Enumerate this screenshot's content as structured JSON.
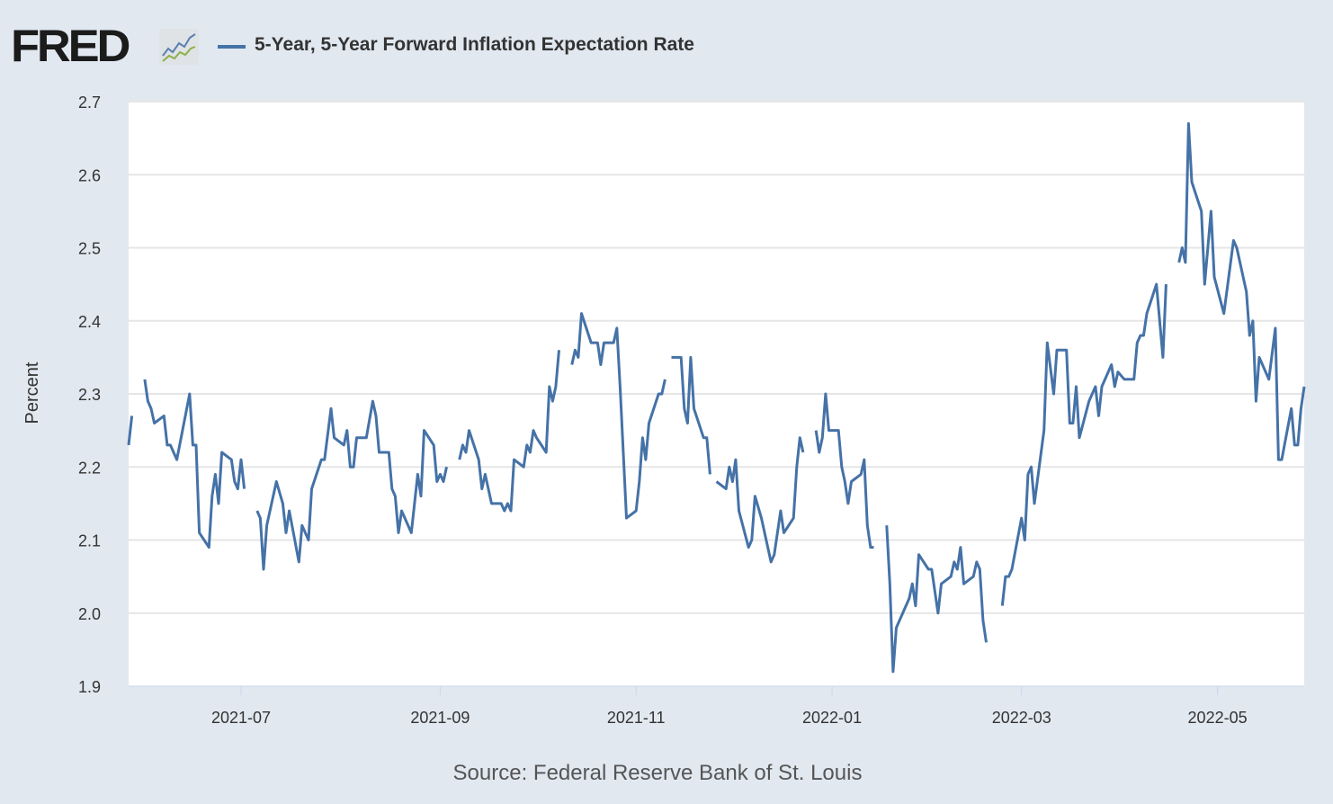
{
  "header": {
    "logo_text": "FRED",
    "logo_icon": "line-chart-icon",
    "legend_label": "5-Year, 5-Year Forward Inflation Expectation Rate"
  },
  "footer": {
    "source": "Source: Federal Reserve Bank of St. Louis"
  },
  "chart_data": {
    "type": "line",
    "title": "5-Year, 5-Year Forward Inflation Expectation Rate",
    "xlabel": "",
    "ylabel": "Percent",
    "xlim": [
      "2021-05-27",
      "2022-05-28"
    ],
    "ylim": [
      1.9,
      2.7
    ],
    "yticks": [
      "1.9",
      "2.0",
      "2.1",
      "2.2",
      "2.3",
      "2.4",
      "2.5",
      "2.6",
      "2.7"
    ],
    "xticks": [
      {
        "date": "2021-07-01",
        "label": "2021-07"
      },
      {
        "date": "2021-09-01",
        "label": "2021-09"
      },
      {
        "date": "2021-11-01",
        "label": "2021-11"
      },
      {
        "date": "2022-01-01",
        "label": "2022-01"
      },
      {
        "date": "2022-03-01",
        "label": "2022-03"
      },
      {
        "date": "2022-05-01",
        "label": "2022-05"
      }
    ],
    "grid": "horizontal",
    "legend": "top-left",
    "color": "#4572a7",
    "series": [
      {
        "name": "5-Year, 5-Year Forward Inflation Expectation Rate",
        "points": [
          [
            "2021-05-27",
            2.23
          ],
          [
            "2021-05-28",
            2.27
          ],
          [
            "2021-05-31",
            null
          ],
          [
            "2021-06-01",
            2.32
          ],
          [
            "2021-06-02",
            2.29
          ],
          [
            "2021-06-03",
            2.28
          ],
          [
            "2021-06-04",
            2.26
          ],
          [
            "2021-06-07",
            2.27
          ],
          [
            "2021-06-08",
            2.23
          ],
          [
            "2021-06-09",
            2.23
          ],
          [
            "2021-06-11",
            2.21
          ],
          [
            "2021-06-15",
            2.3
          ],
          [
            "2021-06-16",
            2.23
          ],
          [
            "2021-06-17",
            2.23
          ],
          [
            "2021-06-18",
            2.11
          ],
          [
            "2021-06-21",
            2.09
          ],
          [
            "2021-06-22",
            2.16
          ],
          [
            "2021-06-23",
            2.19
          ],
          [
            "2021-06-24",
            2.15
          ],
          [
            "2021-06-25",
            2.22
          ],
          [
            "2021-06-28",
            2.21
          ],
          [
            "2021-06-29",
            2.18
          ],
          [
            "2021-06-30",
            2.17
          ],
          [
            "2021-07-01",
            2.21
          ],
          [
            "2021-07-02",
            2.17
          ],
          [
            "2021-07-05",
            null
          ],
          [
            "2021-07-06",
            2.14
          ],
          [
            "2021-07-07",
            2.13
          ],
          [
            "2021-07-08",
            2.06
          ],
          [
            "2021-07-09",
            2.12
          ],
          [
            "2021-07-12",
            2.18
          ],
          [
            "2021-07-14",
            2.15
          ],
          [
            "2021-07-15",
            2.11
          ],
          [
            "2021-07-16",
            2.14
          ],
          [
            "2021-07-19",
            2.07
          ],
          [
            "2021-07-20",
            2.12
          ],
          [
            "2021-07-22",
            2.1
          ],
          [
            "2021-07-23",
            2.17
          ],
          [
            "2021-07-26",
            2.21
          ],
          [
            "2021-07-27",
            2.21
          ],
          [
            "2021-07-29",
            2.28
          ],
          [
            "2021-07-30",
            2.24
          ],
          [
            "2021-08-02",
            2.23
          ],
          [
            "2021-08-03",
            2.25
          ],
          [
            "2021-08-04",
            2.2
          ],
          [
            "2021-08-05",
            2.2
          ],
          [
            "2021-08-06",
            2.24
          ],
          [
            "2021-08-09",
            2.24
          ],
          [
            "2021-08-11",
            2.29
          ],
          [
            "2021-08-12",
            2.27
          ],
          [
            "2021-08-13",
            2.22
          ],
          [
            "2021-08-16",
            2.22
          ],
          [
            "2021-08-17",
            2.17
          ],
          [
            "2021-08-18",
            2.16
          ],
          [
            "2021-08-19",
            2.11
          ],
          [
            "2021-08-20",
            2.14
          ],
          [
            "2021-08-23",
            2.11
          ],
          [
            "2021-08-25",
            2.19
          ],
          [
            "2021-08-26",
            2.16
          ],
          [
            "2021-08-27",
            2.25
          ],
          [
            "2021-08-30",
            2.23
          ],
          [
            "2021-08-31",
            2.18
          ],
          [
            "2021-09-01",
            2.19
          ],
          [
            "2021-09-02",
            2.18
          ],
          [
            "2021-09-03",
            2.2
          ],
          [
            "2021-09-06",
            null
          ],
          [
            "2021-09-07",
            2.21
          ],
          [
            "2021-09-08",
            2.23
          ],
          [
            "2021-09-09",
            2.22
          ],
          [
            "2021-09-10",
            2.25
          ],
          [
            "2021-09-13",
            2.21
          ],
          [
            "2021-09-14",
            2.17
          ],
          [
            "2021-09-15",
            2.19
          ],
          [
            "2021-09-17",
            2.15
          ],
          [
            "2021-09-20",
            2.15
          ],
          [
            "2021-09-21",
            2.14
          ],
          [
            "2021-09-22",
            2.15
          ],
          [
            "2021-09-23",
            2.14
          ],
          [
            "2021-09-24",
            2.21
          ],
          [
            "2021-09-27",
            2.2
          ],
          [
            "2021-09-28",
            2.23
          ],
          [
            "2021-09-29",
            2.22
          ],
          [
            "2021-09-30",
            2.25
          ],
          [
            "2021-10-01",
            2.24
          ],
          [
            "2021-10-04",
            2.22
          ],
          [
            "2021-10-05",
            2.31
          ],
          [
            "2021-10-06",
            2.29
          ],
          [
            "2021-10-07",
            2.31
          ],
          [
            "2021-10-08",
            2.36
          ],
          [
            "2021-10-11",
            null
          ],
          [
            "2021-10-12",
            2.34
          ],
          [
            "2021-10-13",
            2.36
          ],
          [
            "2021-10-14",
            2.35
          ],
          [
            "2021-10-15",
            2.41
          ],
          [
            "2021-10-18",
            2.37
          ],
          [
            "2021-10-20",
            2.37
          ],
          [
            "2021-10-21",
            2.34
          ],
          [
            "2021-10-22",
            2.37
          ],
          [
            "2021-10-25",
            2.37
          ],
          [
            "2021-10-26",
            2.39
          ],
          [
            "2021-10-27",
            2.31
          ],
          [
            "2021-10-29",
            2.13
          ],
          [
            "2021-11-01",
            2.14
          ],
          [
            "2021-11-02",
            2.18
          ],
          [
            "2021-11-03",
            2.24
          ],
          [
            "2021-11-04",
            2.21
          ],
          [
            "2021-11-05",
            2.26
          ],
          [
            "2021-11-08",
            2.3
          ],
          [
            "2021-11-09",
            2.3
          ],
          [
            "2021-11-10",
            2.32
          ],
          [
            "2021-11-11",
            null
          ],
          [
            "2021-11-12",
            2.35
          ],
          [
            "2021-11-15",
            2.35
          ],
          [
            "2021-11-16",
            2.28
          ],
          [
            "2021-11-17",
            2.26
          ],
          [
            "2021-11-18",
            2.35
          ],
          [
            "2021-11-19",
            2.28
          ],
          [
            "2021-11-22",
            2.24
          ],
          [
            "2021-11-23",
            2.24
          ],
          [
            "2021-11-24",
            2.19
          ],
          [
            "2021-11-25",
            null
          ],
          [
            "2021-11-26",
            2.18
          ],
          [
            "2021-11-29",
            2.17
          ],
          [
            "2021-11-30",
            2.2
          ],
          [
            "2021-12-01",
            2.18
          ],
          [
            "2021-12-02",
            2.21
          ],
          [
            "2021-12-03",
            2.14
          ],
          [
            "2021-12-06",
            2.09
          ],
          [
            "2021-12-07",
            2.1
          ],
          [
            "2021-12-08",
            2.16
          ],
          [
            "2021-12-10",
            2.13
          ],
          [
            "2021-12-13",
            2.07
          ],
          [
            "2021-12-14",
            2.08
          ],
          [
            "2021-12-16",
            2.14
          ],
          [
            "2021-12-17",
            2.11
          ],
          [
            "2021-12-20",
            2.13
          ],
          [
            "2021-12-21",
            2.2
          ],
          [
            "2021-12-22",
            2.24
          ],
          [
            "2021-12-23",
            2.22
          ],
          [
            "2021-12-24",
            null
          ],
          [
            "2021-12-27",
            2.25
          ],
          [
            "2021-12-28",
            2.22
          ],
          [
            "2021-12-29",
            2.24
          ],
          [
            "2021-12-30",
            2.3
          ],
          [
            "2021-12-31",
            2.25
          ],
          [
            "2022-01-03",
            2.25
          ],
          [
            "2022-01-04",
            2.2
          ],
          [
            "2022-01-05",
            2.18
          ],
          [
            "2022-01-06",
            2.15
          ],
          [
            "2022-01-07",
            2.18
          ],
          [
            "2022-01-10",
            2.19
          ],
          [
            "2022-01-11",
            2.21
          ],
          [
            "2022-01-12",
            2.12
          ],
          [
            "2022-01-13",
            2.09
          ],
          [
            "2022-01-14",
            2.09
          ],
          [
            "2022-01-17",
            null
          ],
          [
            "2022-01-18",
            2.12
          ],
          [
            "2022-01-19",
            2.04
          ],
          [
            "2022-01-20",
            1.92
          ],
          [
            "2022-01-21",
            1.98
          ],
          [
            "2022-01-25",
            2.02
          ],
          [
            "2022-01-26",
            2.04
          ],
          [
            "2022-01-27",
            2.01
          ],
          [
            "2022-01-28",
            2.08
          ],
          [
            "2022-01-31",
            2.06
          ],
          [
            "2022-02-01",
            2.06
          ],
          [
            "2022-02-03",
            2.0
          ],
          [
            "2022-02-04",
            2.04
          ],
          [
            "2022-02-07",
            2.05
          ],
          [
            "2022-02-08",
            2.07
          ],
          [
            "2022-02-09",
            2.06
          ],
          [
            "2022-02-10",
            2.09
          ],
          [
            "2022-02-11",
            2.04
          ],
          [
            "2022-02-14",
            2.05
          ],
          [
            "2022-02-15",
            2.07
          ],
          [
            "2022-02-16",
            2.06
          ],
          [
            "2022-02-17",
            1.99
          ],
          [
            "2022-02-18",
            1.96
          ],
          [
            "2022-02-21",
            null
          ],
          [
            "2022-02-23",
            2.01
          ],
          [
            "2022-02-24",
            2.05
          ],
          [
            "2022-02-25",
            2.05
          ],
          [
            "2022-02-26",
            2.06
          ],
          [
            "2022-03-01",
            2.13
          ],
          [
            "2022-03-02",
            2.1
          ],
          [
            "2022-03-03",
            2.19
          ],
          [
            "2022-03-04",
            2.2
          ],
          [
            "2022-03-05",
            2.15
          ],
          [
            "2022-03-08",
            2.25
          ],
          [
            "2022-03-09",
            2.37
          ],
          [
            "2022-03-11",
            2.3
          ],
          [
            "2022-03-12",
            2.36
          ],
          [
            "2022-03-15",
            2.36
          ],
          [
            "2022-03-16",
            2.26
          ],
          [
            "2022-03-17",
            2.26
          ],
          [
            "2022-03-18",
            2.31
          ],
          [
            "2022-03-19",
            2.24
          ],
          [
            "2022-03-22",
            2.29
          ],
          [
            "2022-03-24",
            2.31
          ],
          [
            "2022-03-25",
            2.27
          ],
          [
            "2022-03-26",
            2.31
          ],
          [
            "2022-03-29",
            2.34
          ],
          [
            "2022-03-30",
            2.31
          ],
          [
            "2022-03-31",
            2.33
          ],
          [
            "2022-04-02",
            2.32
          ],
          [
            "2022-04-05",
            2.32
          ],
          [
            "2022-04-06",
            2.37
          ],
          [
            "2022-04-07",
            2.38
          ],
          [
            "2022-04-08",
            2.38
          ],
          [
            "2022-04-09",
            2.41
          ],
          [
            "2022-04-12",
            2.45
          ],
          [
            "2022-04-14",
            2.35
          ],
          [
            "2022-04-15",
            2.45
          ],
          [
            "2022-04-17",
            null
          ],
          [
            "2022-04-19",
            2.48
          ],
          [
            "2022-04-20",
            2.5
          ],
          [
            "2022-04-21",
            2.48
          ],
          [
            "2022-04-22",
            2.67
          ],
          [
            "2022-04-23",
            2.59
          ],
          [
            "2022-04-26",
            2.55
          ],
          [
            "2022-04-27",
            2.45
          ],
          [
            "2022-04-29",
            2.55
          ],
          [
            "2022-04-30",
            2.46
          ],
          [
            "2022-05-03",
            2.41
          ],
          [
            "2022-05-06",
            2.51
          ],
          [
            "2022-05-07",
            2.5
          ],
          [
            "2022-05-10",
            2.44
          ],
          [
            "2022-05-11",
            2.38
          ],
          [
            "2022-05-12",
            2.4
          ],
          [
            "2022-05-13",
            2.29
          ],
          [
            "2022-05-14",
            2.35
          ],
          [
            "2022-05-17",
            2.32
          ],
          [
            "2022-05-19",
            2.39
          ],
          [
            "2022-05-20",
            2.21
          ],
          [
            "2022-05-21",
            2.21
          ],
          [
            "2022-05-24",
            2.28
          ],
          [
            "2022-05-25",
            2.23
          ],
          [
            "2022-05-26",
            2.23
          ],
          [
            "2022-05-27",
            2.28
          ],
          [
            "2022-05-28",
            2.31
          ]
        ]
      }
    ]
  }
}
